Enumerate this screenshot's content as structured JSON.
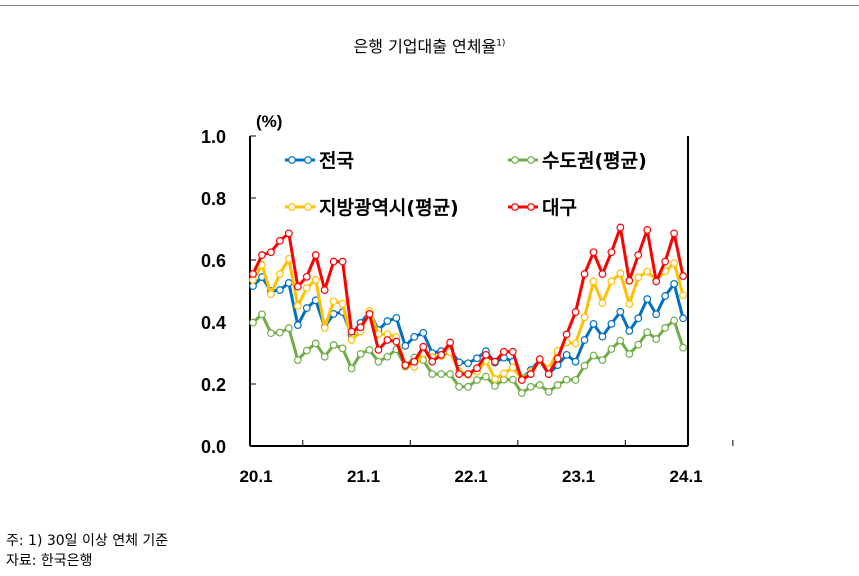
{
  "title": "은행 기업대출 연체율",
  "title_sup": "1)",
  "footnotes": [
    "주: 1) 30일 이상 연체 기준",
    "자료: 한국은행"
  ],
  "chart_data": {
    "type": "line",
    "title": "은행 기업대출 연체율1)",
    "ylabel": "(%)",
    "xlabel": "",
    "ylim": [
      0,
      1.0
    ],
    "yticks": [
      "0.0",
      "0.2",
      "0.4",
      "0.6",
      "0.8",
      "1.0"
    ],
    "xtick_labels": [
      "20.1",
      "21.1",
      "22.1",
      "23.1",
      "24.1"
    ],
    "x_start": "2020.1",
    "x_end": "2024.1",
    "frequency": "monthly",
    "grid": false,
    "legend": "top",
    "series": [
      {
        "name": "전국",
        "color": "#0070C0",
        "values": [
          0.516,
          0.545,
          0.5,
          0.503,
          0.526,
          0.39,
          0.445,
          0.47,
          0.384,
          0.426,
          0.432,
          0.358,
          0.397,
          0.432,
          0.374,
          0.403,
          0.413,
          0.323,
          0.352,
          0.365,
          0.3,
          0.306,
          0.31,
          0.27,
          0.267,
          0.283,
          0.306,
          0.269,
          0.285,
          0.272,
          0.218,
          0.245,
          0.277,
          0.232,
          0.261,
          0.294,
          0.272,
          0.342,
          0.394,
          0.353,
          0.394,
          0.433,
          0.371,
          0.412,
          0.474,
          0.425,
          0.484,
          0.523,
          0.412
        ]
      },
      {
        "name": "수도권(평균)",
        "color": "#70AD47",
        "values": [
          0.398,
          0.425,
          0.364,
          0.366,
          0.38,
          0.277,
          0.308,
          0.331,
          0.288,
          0.326,
          0.315,
          0.25,
          0.297,
          0.31,
          0.272,
          0.288,
          0.312,
          0.256,
          0.286,
          0.277,
          0.232,
          0.232,
          0.232,
          0.191,
          0.191,
          0.213,
          0.224,
          0.194,
          0.214,
          0.214,
          0.171,
          0.191,
          0.197,
          0.175,
          0.197,
          0.214,
          0.213,
          0.259,
          0.292,
          0.277,
          0.313,
          0.34,
          0.297,
          0.327,
          0.367,
          0.345,
          0.381,
          0.405,
          0.317
        ]
      },
      {
        "name": "지방광역시(평균)",
        "color": "#FFC000",
        "values": [
          0.536,
          0.584,
          0.49,
          0.555,
          0.604,
          0.452,
          0.51,
          0.536,
          0.381,
          0.467,
          0.459,
          0.342,
          0.369,
          0.436,
          0.361,
          0.361,
          0.351,
          0.26,
          0.255,
          0.298,
          0.287,
          0.29,
          0.303,
          0.242,
          0.23,
          0.24,
          0.275,
          0.216,
          0.234,
          0.253,
          0.216,
          0.24,
          0.275,
          0.248,
          0.307,
          0.334,
          0.331,
          0.415,
          0.531,
          0.461,
          0.531,
          0.557,
          0.458,
          0.544,
          0.563,
          0.536,
          0.563,
          0.59,
          0.486
        ]
      },
      {
        "name": "대구",
        "color": "#FF0000",
        "values": [
          0.555,
          0.616,
          0.625,
          0.662,
          0.686,
          0.514,
          0.546,
          0.616,
          0.503,
          0.595,
          0.595,
          0.369,
          0.383,
          0.426,
          0.31,
          0.342,
          0.337,
          0.261,
          0.272,
          0.32,
          0.272,
          0.294,
          0.334,
          0.232,
          0.232,
          0.251,
          0.294,
          0.272,
          0.304,
          0.304,
          0.213,
          0.232,
          0.28,
          0.232,
          0.282,
          0.36,
          0.432,
          0.555,
          0.625,
          0.555,
          0.625,
          0.705,
          0.533,
          0.616,
          0.697,
          0.531,
          0.595,
          0.686,
          0.548
        ]
      }
    ]
  }
}
